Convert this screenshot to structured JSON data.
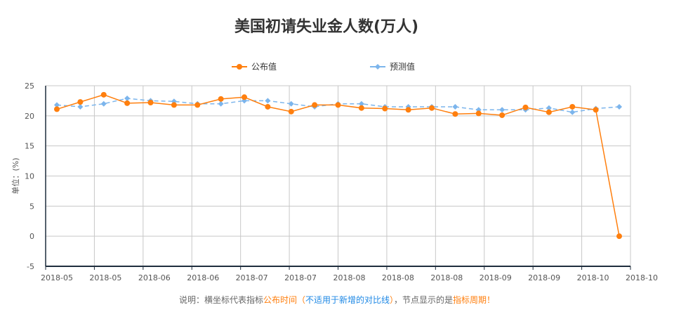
{
  "colors": {
    "published": "#ff7f0e",
    "forecast": "#7cb5ec",
    "note_orange": "#ff7f0e",
    "note_blue": "#1e88e5",
    "grid": "#c8c8c8",
    "axis": "#1f2d3d"
  },
  "chart_data": {
    "type": "line",
    "title": "美国初请失业金人数(万人)",
    "ylabel": "单位：(%)",
    "xlabel": "",
    "ylim": [
      -5,
      25
    ],
    "y_ticks": [
      -5,
      0,
      5,
      10,
      15,
      20,
      25
    ],
    "x_tick_labels": [
      "2018-05",
      "2018-05",
      "2018-06",
      "2018-06",
      "2018-07",
      "2018-07",
      "2018-08",
      "2018-08",
      "2018-08",
      "2018-09",
      "2018-09",
      "2018-10",
      "2018-10"
    ],
    "grid": true,
    "legend_position": "top-center",
    "series": [
      {
        "name": "公布值",
        "marker": "circle",
        "line": "solid",
        "values": [
          21.1,
          22.3,
          23.5,
          22.1,
          22.2,
          21.8,
          21.8,
          22.8,
          23.1,
          21.5,
          20.7,
          21.8,
          21.8,
          21.3,
          21.2,
          21.0,
          21.3,
          20.3,
          20.4,
          20.1,
          21.4,
          20.6,
          21.5,
          21.0,
          0.0
        ]
      },
      {
        "name": "预测值",
        "marker": "diamond",
        "line": "dashed",
        "values": [
          21.8,
          21.5,
          22.0,
          22.9,
          22.5,
          22.4,
          22.0,
          22.0,
          22.5,
          22.5,
          22.0,
          21.5,
          22.0,
          22.0,
          21.5,
          21.5,
          21.5,
          21.5,
          21.0,
          21.0,
          21.0,
          21.3,
          20.6,
          21.2,
          21.5
        ]
      }
    ]
  },
  "footnote": {
    "prefix": "说明：横坐标代表指标",
    "highlight1": "公布时间",
    "paren_open": "（",
    "highlight2": "不适用于新增的对比线",
    "paren_close": "）",
    "middle": "，节点显示的是",
    "highlight3": "指标周期",
    "suffix": "！"
  }
}
